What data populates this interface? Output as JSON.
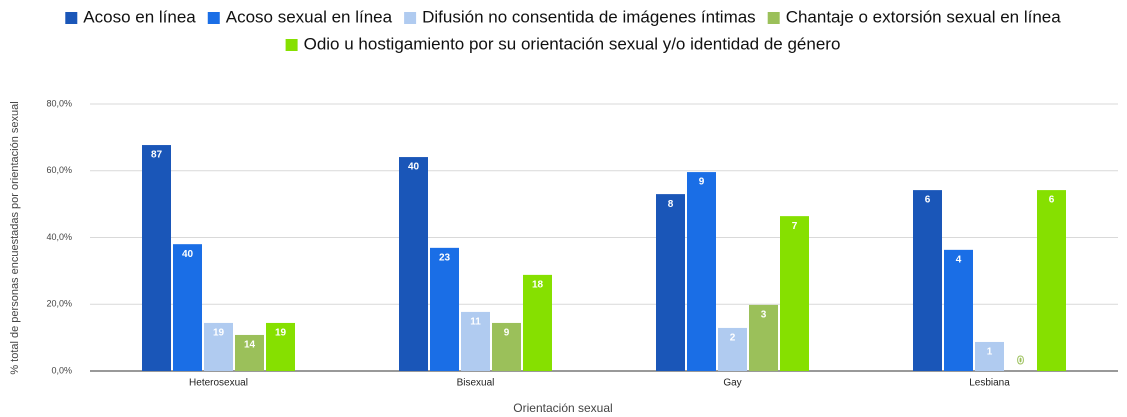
{
  "chart_data": {
    "type": "bar",
    "x_label": "Orientación sexual",
    "y_label": "%  total de personas encuestadas por orientación sexual",
    "categories": [
      "Heterosexual",
      "Bisexual",
      "Gay",
      "Lesbiana"
    ],
    "ylim": [
      0,
      80
    ],
    "yticks": [
      {
        "value": 0,
        "label": "0,0%"
      },
      {
        "value": 20,
        "label": "20,0%"
      },
      {
        "value": 40,
        "label": "40,0%"
      },
      {
        "value": 60,
        "label": "60,0%"
      },
      {
        "value": 80,
        "label": "80,0%"
      }
    ],
    "grid": true,
    "legend": "top",
    "series": [
      {
        "name": "Acoso en línea",
        "color": "#1a56b8",
        "values": [
          67.7,
          64.1,
          53.0,
          54.2
        ],
        "counts": [
          87,
          40,
          8,
          6
        ]
      },
      {
        "name": "Acoso sexual en línea",
        "color": "#1a6ee6",
        "values": [
          38.0,
          36.9,
          59.6,
          36.3
        ],
        "counts": [
          40,
          23,
          9,
          4
        ]
      },
      {
        "name": "Difusión no consentida de imágenes íntimas",
        "color": "#b0cbf0",
        "values": [
          14.4,
          17.7,
          12.9,
          8.7
        ],
        "counts": [
          19,
          11,
          2,
          1
        ]
      },
      {
        "name": "Chantaje o extorsión sexual en línea",
        "color": "#9bc05a",
        "values": [
          10.8,
          14.4,
          19.8,
          0
        ],
        "counts": [
          14,
          9,
          3,
          0
        ]
      },
      {
        "name": "Odio u hostigamiento por su orientación sexual y/o identidad de género",
        "color": "#86e000",
        "values": [
          14.4,
          28.8,
          46.4,
          54.2
        ],
        "counts": [
          19,
          18,
          7,
          6
        ]
      }
    ]
  }
}
